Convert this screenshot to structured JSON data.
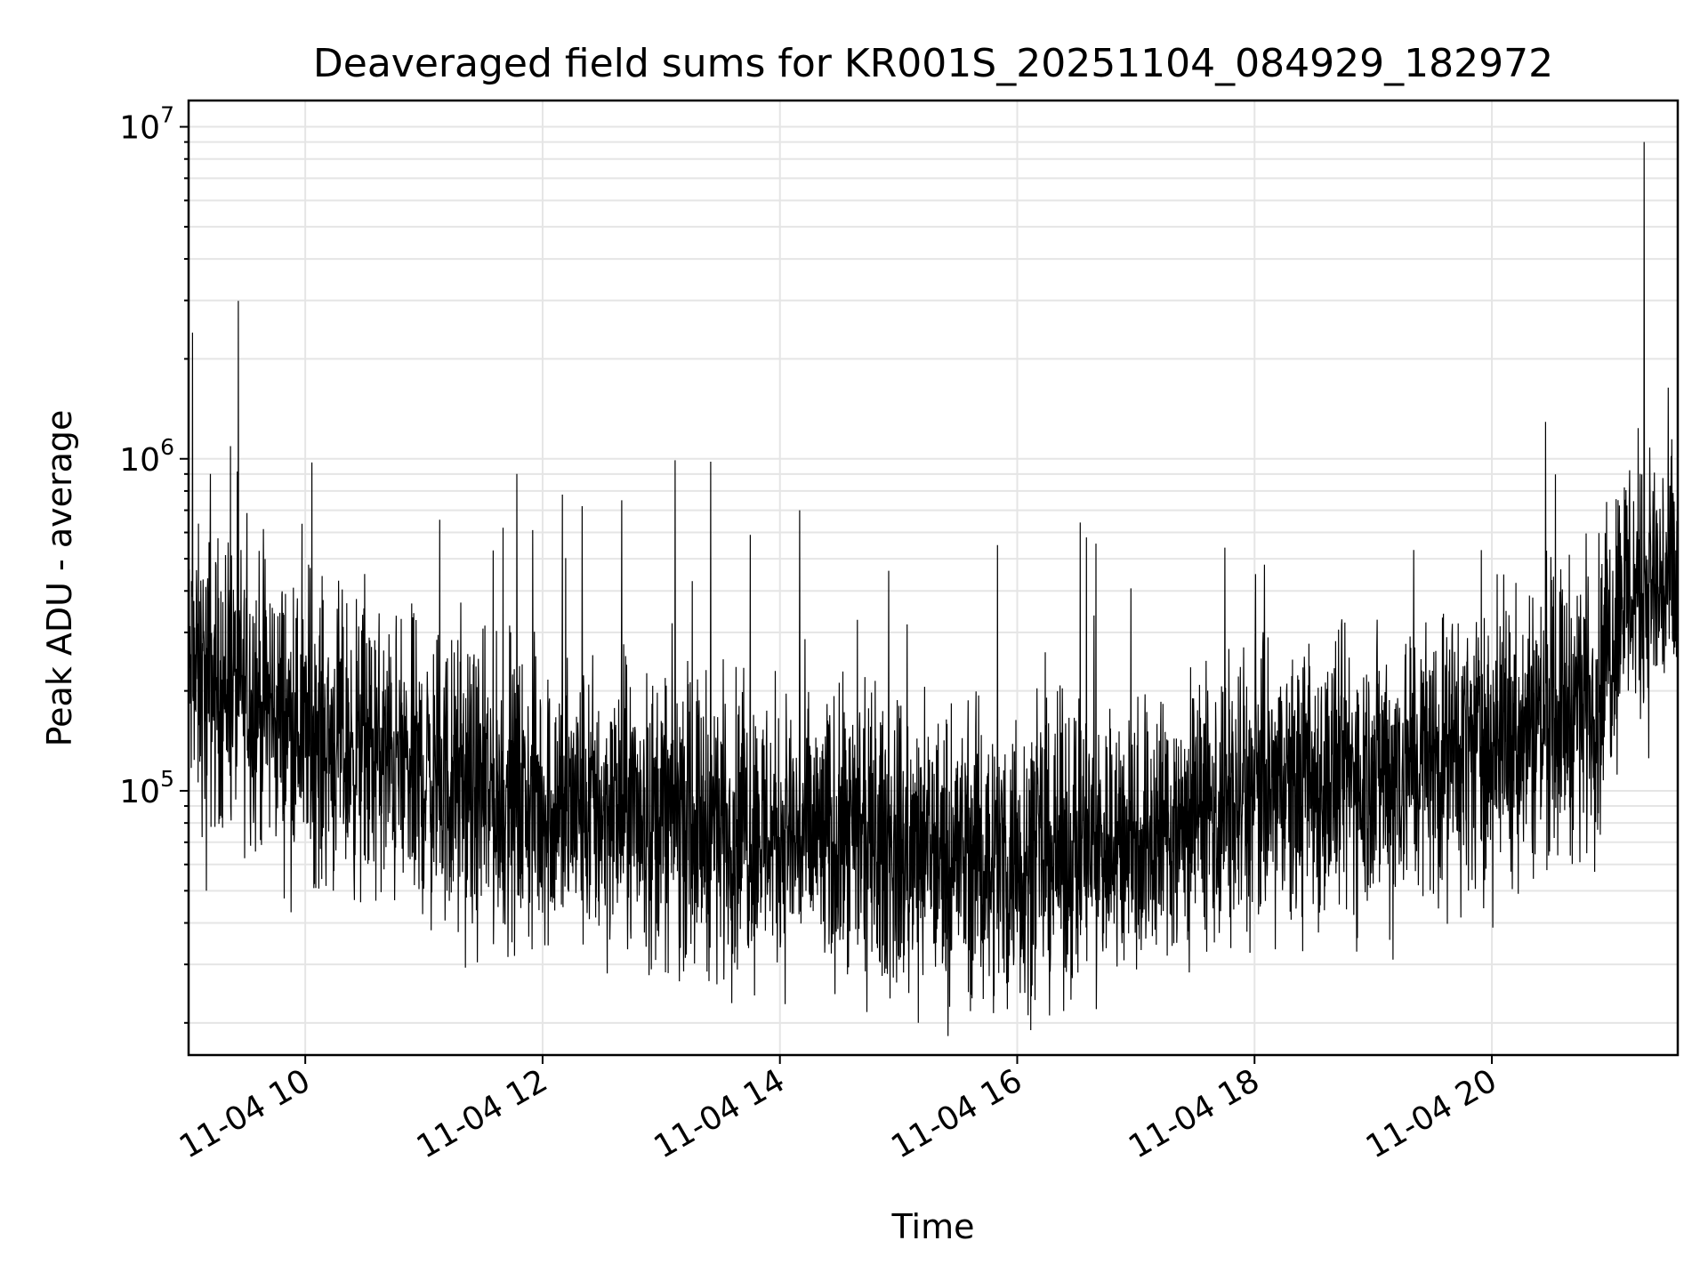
{
  "chart_data": {
    "type": "line",
    "title": "Deaveraged field sums for KR001S_20251104_084929_182972",
    "xlabel": "Time",
    "ylabel": "Peak ADU - average",
    "xlim": [
      "2025-11-04 09:01",
      "2025-11-04 21:34"
    ],
    "ylim": [
      16000,
      12000000
    ],
    "yscale": "log",
    "grid": true,
    "line_color": "#000000",
    "x_ticks": [
      {
        "time": "2025-11-04 10:00",
        "label": "11-04 10"
      },
      {
        "time": "2025-11-04 12:00",
        "label": "11-04 12"
      },
      {
        "time": "2025-11-04 14:00",
        "label": "11-04 14"
      },
      {
        "time": "2025-11-04 16:00",
        "label": "11-04 16"
      },
      {
        "time": "2025-11-04 18:00",
        "label": "11-04 18"
      },
      {
        "time": "2025-11-04 20:00",
        "label": "11-04 20"
      }
    ],
    "y_ticks": [
      {
        "value": 100000,
        "base": "10",
        "exp": "5"
      },
      {
        "value": 1000000,
        "base": "10",
        "exp": "6"
      },
      {
        "value": 10000000,
        "base": "10",
        "exp": "7"
      }
    ],
    "series": [
      {
        "values_note": "",
        "trend": [
          {
            "time": "2025-11-04 09:01",
            "value": 220000
          },
          {
            "time": "2025-11-04 09:30",
            "value": 200000
          },
          {
            "time": "2025-11-04 10:00",
            "value": 150000
          },
          {
            "time": "2025-11-04 10:30",
            "value": 130000
          },
          {
            "time": "2025-11-04 11:00",
            "value": 110000
          },
          {
            "time": "2025-11-04 11:30",
            "value": 95000
          },
          {
            "time": "2025-11-04 12:00",
            "value": 90000
          },
          {
            "time": "2025-11-04 13:00",
            "value": 85000
          },
          {
            "time": "2025-11-04 14:00",
            "value": 75000
          },
          {
            "time": "2025-11-04 15:00",
            "value": 65000
          },
          {
            "time": "2025-11-04 16:00",
            "value": 62000
          },
          {
            "time": "2025-11-04 17:00",
            "value": 72000
          },
          {
            "time": "2025-11-04 18:00",
            "value": 95000
          },
          {
            "time": "2025-11-04 19:00",
            "value": 115000
          },
          {
            "time": "2025-11-04 20:00",
            "value": 140000
          },
          {
            "time": "2025-11-04 20:30",
            "value": 170000
          },
          {
            "time": "2025-11-04 20:55",
            "value": 200000
          },
          {
            "time": "2025-11-04 21:05",
            "value": 400000
          },
          {
            "time": "2025-11-04 21:34",
            "value": 420000
          }
        ],
        "spikes": [
          {
            "time": "2025-11-04 09:03",
            "value": 2400000
          },
          {
            "time": "2025-11-04 09:12",
            "value": 900000
          },
          {
            "time": "2025-11-04 09:21",
            "value": 560000
          },
          {
            "time": "2025-11-04 10:30",
            "value": 450000
          },
          {
            "time": "2025-11-04 11:35",
            "value": 530000
          },
          {
            "time": "2025-11-04 11:40",
            "value": 620000
          },
          {
            "time": "2025-11-04 11:47",
            "value": 900000
          },
          {
            "time": "2025-11-04 11:55",
            "value": 610000
          },
          {
            "time": "2025-11-04 12:10",
            "value": 780000
          },
          {
            "time": "2025-11-04 12:20",
            "value": 720000
          },
          {
            "time": "2025-11-04 12:40",
            "value": 750000
          },
          {
            "time": "2025-11-04 13:07",
            "value": 990000
          },
          {
            "time": "2025-11-04 13:25",
            "value": 980000
          },
          {
            "time": "2025-11-04 13:45",
            "value": 590000
          },
          {
            "time": "2025-11-04 14:10",
            "value": 700000
          },
          {
            "time": "2025-11-04 14:55",
            "value": 460000
          },
          {
            "time": "2025-11-04 15:50",
            "value": 550000
          },
          {
            "time": "2025-11-04 16:35",
            "value": 580000
          },
          {
            "time": "2025-11-04 17:45",
            "value": 540000
          },
          {
            "time": "2025-11-04 18:05",
            "value": 480000
          },
          {
            "time": "2025-11-04 21:07",
            "value": 820000
          },
          {
            "time": "2025-11-04 21:15",
            "value": 900000
          },
          {
            "time": "2025-11-04 21:17",
            "value": 9000000
          }
        ],
        "dips": [
          {
            "time": "2025-11-04 09:10",
            "value": 50000
          },
          {
            "time": "2025-11-04 12:55",
            "value": 29000
          },
          {
            "time": "2025-11-04 15:10",
            "value": 20000
          },
          {
            "time": "2025-11-04 15:55",
            "value": 22000
          },
          {
            "time": "2025-11-04 16:40",
            "value": 22000
          },
          {
            "time": "2025-11-04 19:10",
            "value": 31000
          }
        ]
      }
    ]
  }
}
